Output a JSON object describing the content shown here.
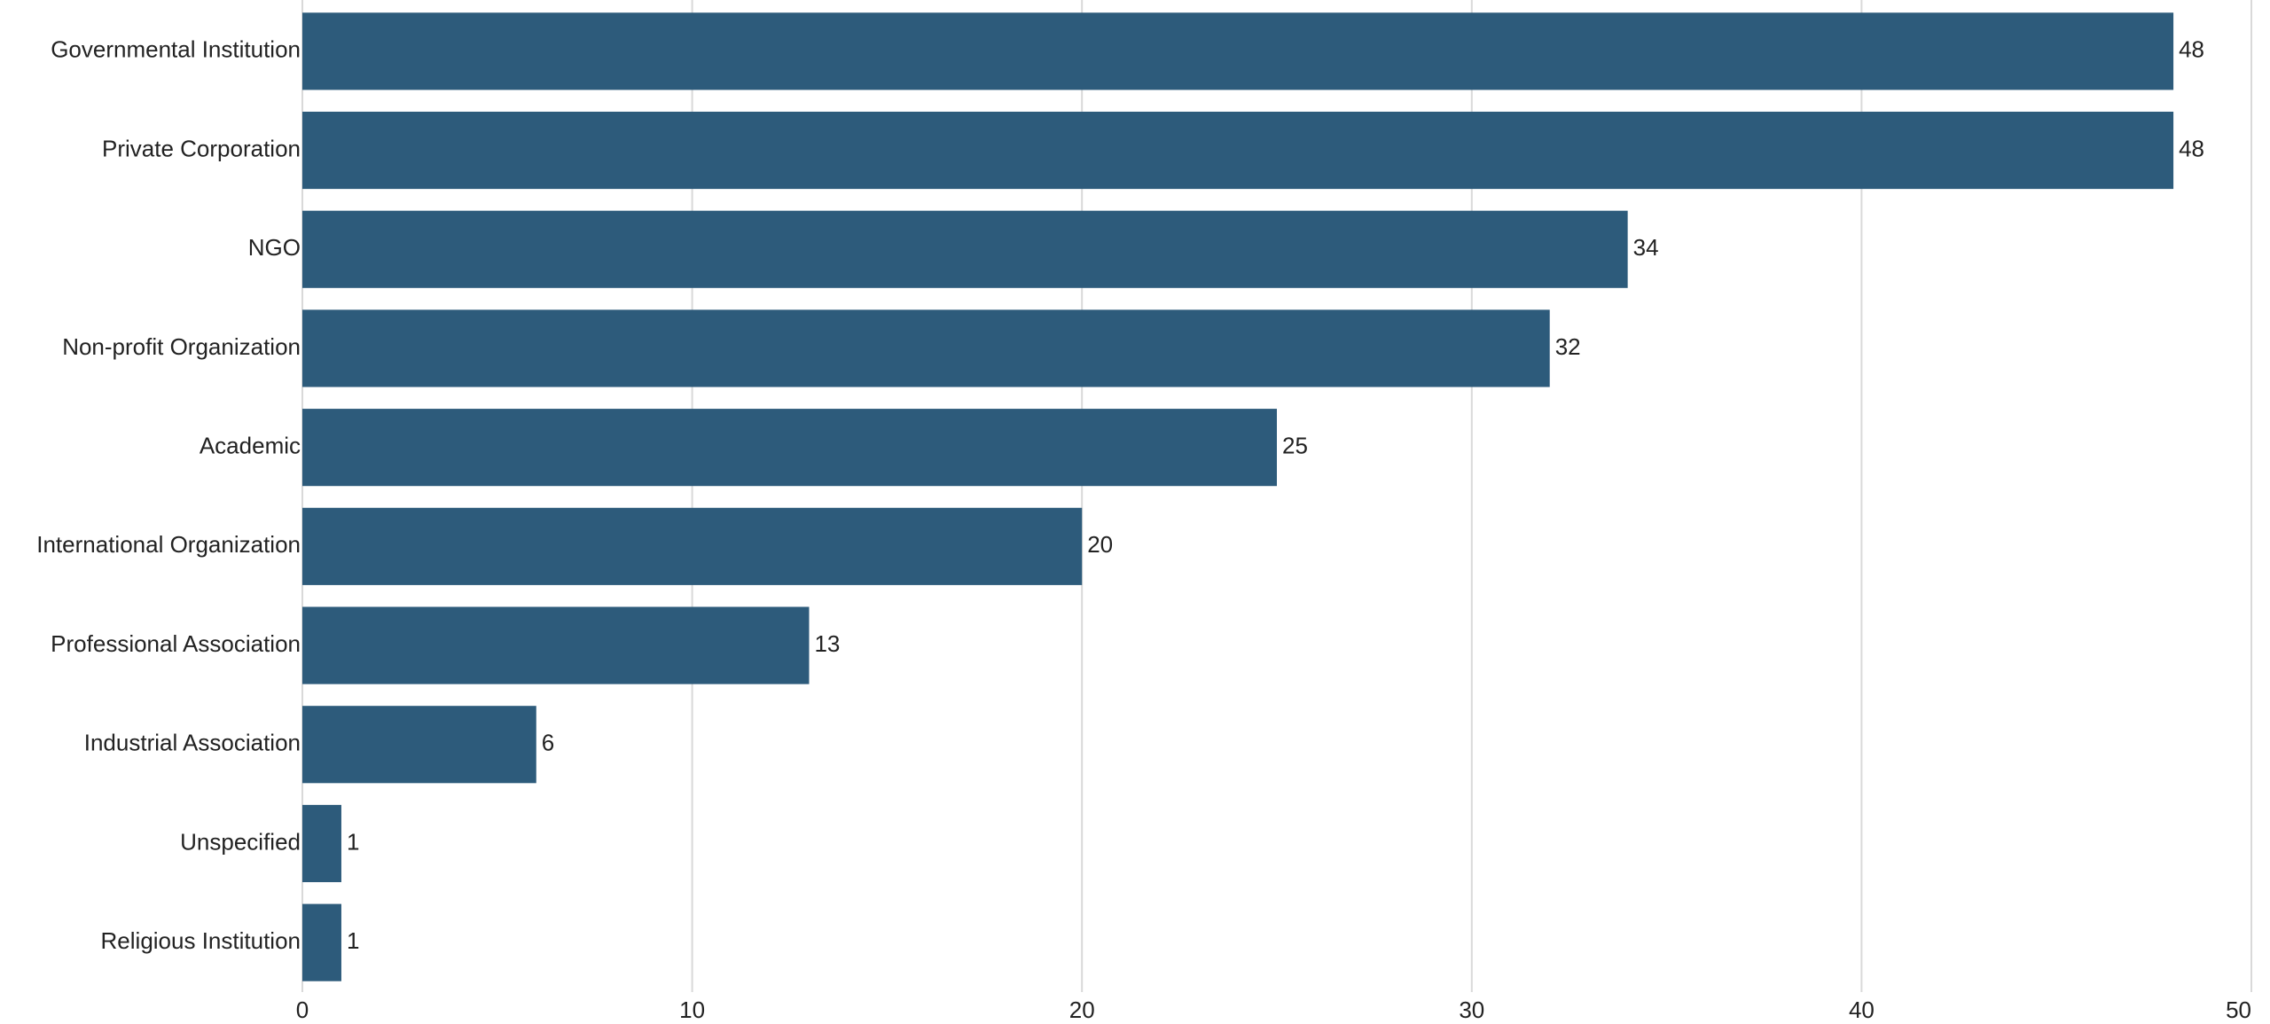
{
  "chart_data": {
    "type": "hbar",
    "categories": [
      "Governmental Institution",
      "Private Corporation",
      "NGO",
      "Non-profit Organization",
      "Academic",
      "International Organization",
      "Professional Association",
      "Industrial Association",
      "Unspecified",
      "Religious Institution"
    ],
    "values": [
      48,
      48,
      34,
      32,
      25,
      20,
      13,
      6,
      1,
      1
    ],
    "color": "#2d5b7b",
    "xlim": [
      0,
      50
    ],
    "xticks": [
      0,
      10,
      20,
      30,
      40,
      50
    ],
    "grid": true
  }
}
